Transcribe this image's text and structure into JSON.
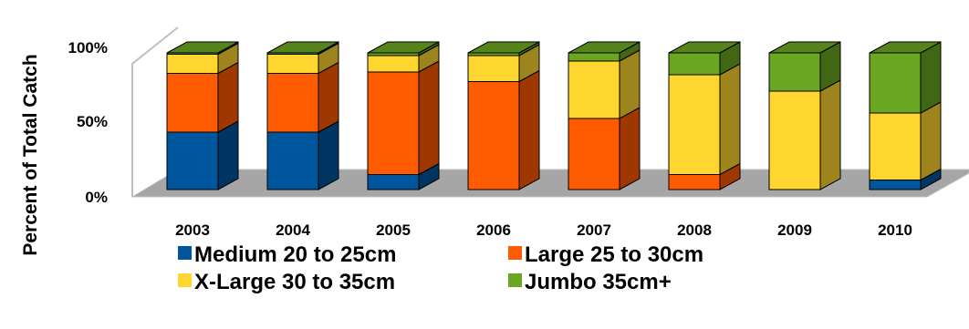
{
  "chart_data": {
    "type": "bar",
    "stacked": true,
    "three_d": true,
    "ylabel": "Percent of Total Catch",
    "xlabel": "",
    "ylim": [
      0,
      100
    ],
    "y_ticks": [
      "0%",
      "50%",
      "100%"
    ],
    "y_tick_values": [
      0,
      50,
      100
    ],
    "categories": [
      "2003",
      "2004",
      "2005",
      "2006",
      "2007",
      "2008",
      "2009",
      "2010"
    ],
    "series": [
      {
        "name": "Medium 20 to 25cm",
        "color": "#00569C",
        "values": [
          42,
          42,
          11,
          0,
          0,
          0,
          0,
          7
        ]
      },
      {
        "name": "Large 25 to 30cm",
        "color": "#FF5B00",
        "values": [
          43,
          43,
          75,
          79,
          52,
          11,
          0,
          0
        ]
      },
      {
        "name": "X-Large 30 to 35cm",
        "color": "#FFD52F",
        "values": [
          14,
          14,
          12,
          19,
          42,
          73,
          72,
          49
        ]
      },
      {
        "name": "Jumbo 35cm+",
        "color": "#6AA621",
        "values": [
          6,
          6,
          6,
          9,
          13,
          19,
          40,
          53
        ]
      }
    ],
    "legend_position": "bottom",
    "grid": false
  },
  "style": {
    "wall_color": "#bfbfbf",
    "floor_color": "#a6a6a6",
    "outline_color": "#000000"
  }
}
